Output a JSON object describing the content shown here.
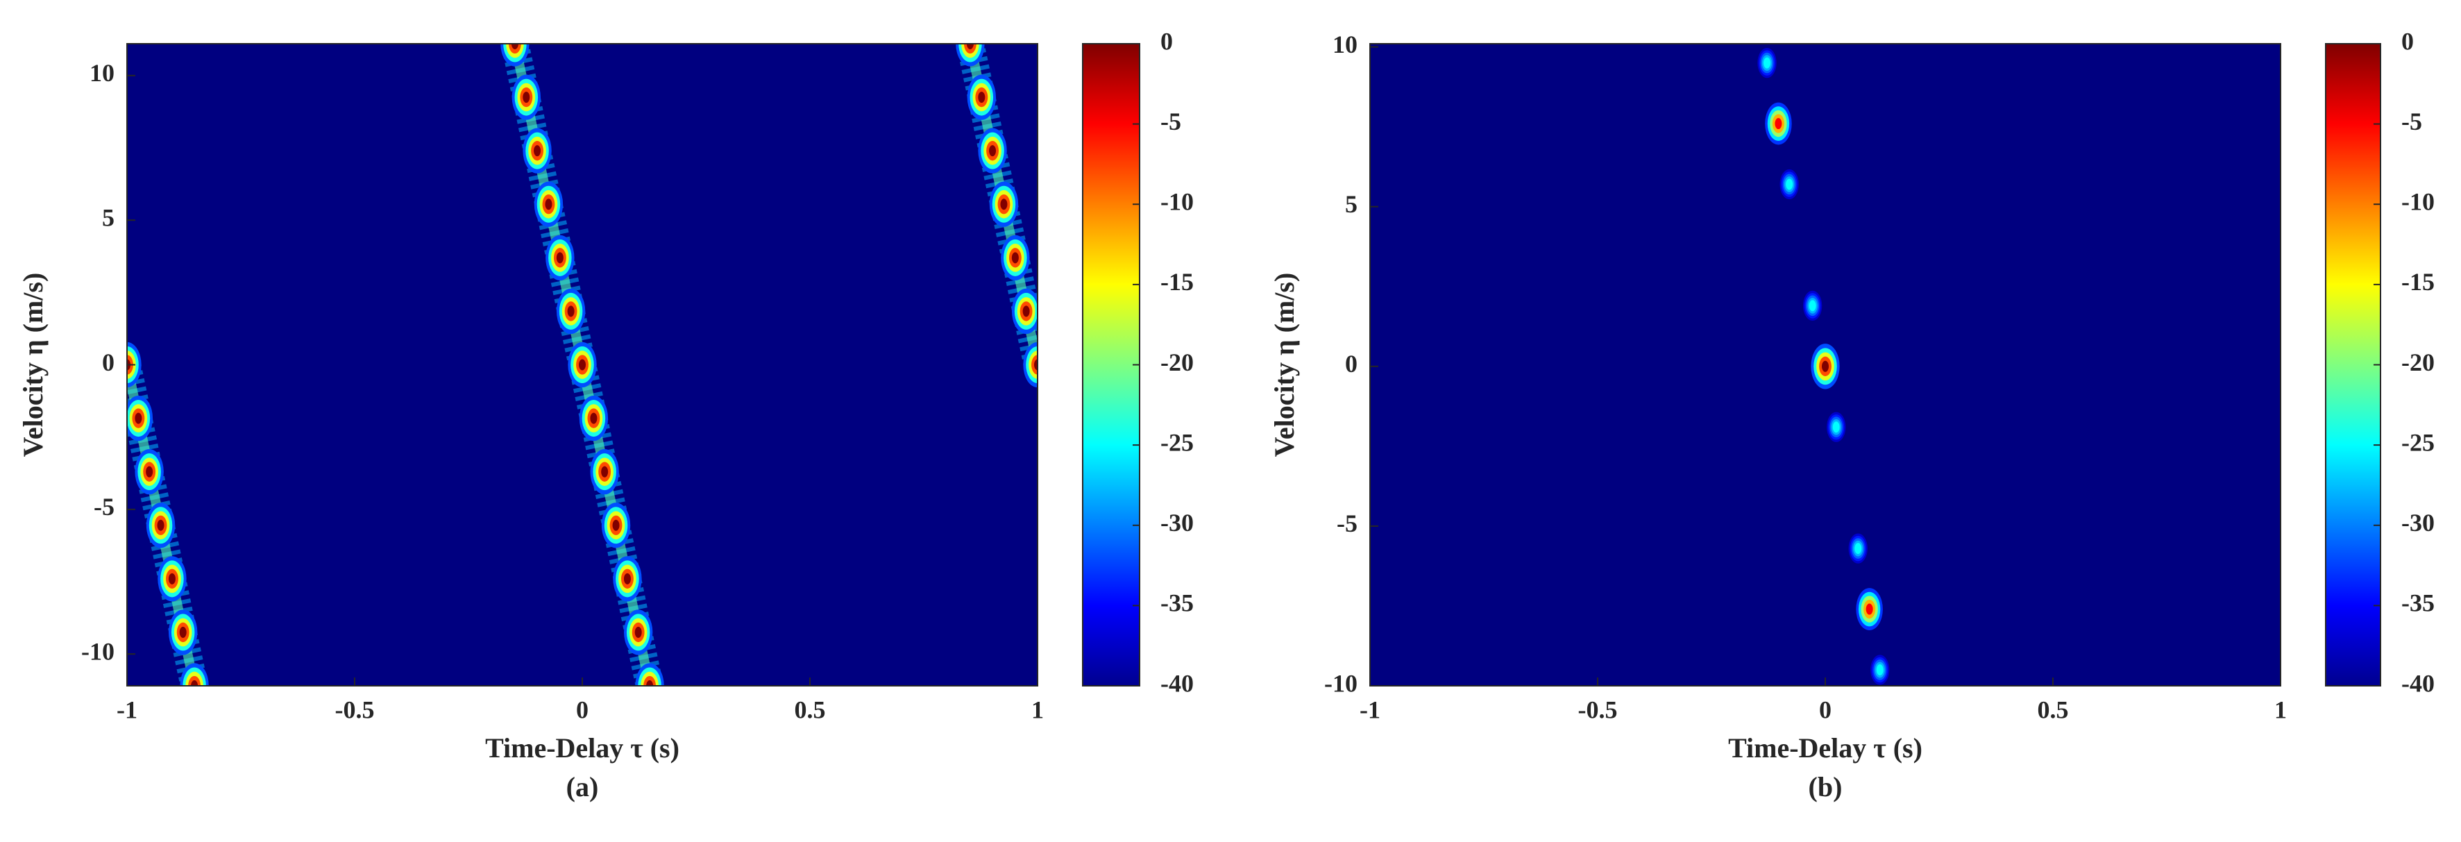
{
  "chart_data": [
    {
      "type": "heatmap",
      "xlabel": "Time-Delay τ (s)",
      "ylabel": "Velocity η (m/s)",
      "caption": "(a)",
      "xlim": [
        -1,
        1
      ],
      "ylim": [
        -11.1,
        11.1
      ],
      "xticks": [
        -1,
        -0.5,
        0,
        0.5,
        1
      ],
      "yticks": [
        -10,
        -5,
        0,
        5,
        10
      ],
      "clim": [
        -40,
        0
      ],
      "cticks": [
        0,
        -5,
        -10,
        -15,
        -20,
        -25,
        -30,
        -35,
        -40
      ],
      "colormap": "jet",
      "series": [
        {
          "x": [
            -0.148,
            -0.123,
            -0.099,
            -0.074,
            -0.049,
            -0.025,
            0,
            0.025,
            0.049,
            0.074,
            0.099,
            0.123,
            0.148
          ],
          "y": [
            11.1,
            9.25,
            7.4,
            5.55,
            3.7,
            1.85,
            0,
            -1.85,
            -3.7,
            -5.55,
            -7.4,
            -9.25,
            -11.1
          ],
          "values": [
            0,
            0,
            0,
            0,
            0,
            0,
            0,
            0,
            0,
            0,
            0,
            0,
            0
          ]
        },
        {
          "x": [
            -1,
            -0.975,
            -0.951,
            -0.926,
            -0.901,
            -0.877,
            -0.852
          ],
          "y": [
            0,
            -1.85,
            -3.7,
            -5.55,
            -7.4,
            -9.25,
            -11.1
          ],
          "values": [
            0,
            0,
            0,
            0,
            0,
            0,
            0
          ]
        },
        {
          "x": [
            1,
            0.975,
            0.951,
            0.926,
            0.901,
            0.877,
            0.852
          ],
          "y": [
            0,
            1.85,
            3.7,
            5.55,
            7.4,
            9.25,
            11.1
          ],
          "values": [
            0,
            0,
            0,
            0,
            0,
            0,
            0
          ]
        }
      ]
    },
    {
      "type": "heatmap",
      "xlabel": "Time-Delay τ (s)",
      "ylabel": "Velocity η (m/s)",
      "caption": "(b)",
      "xlim": [
        -1,
        1
      ],
      "ylim": [
        -10,
        10.1
      ],
      "xticks": [
        -1,
        -0.5,
        0,
        0.5,
        1
      ],
      "yticks": [
        -10,
        -5,
        0,
        5,
        10
      ],
      "clim": [
        -40,
        0
      ],
      "cticks": [
        0,
        -5,
        -10,
        -15,
        -20,
        -25,
        -30,
        -35,
        -40
      ],
      "colormap": "jet",
      "series": [
        {
          "x": [
            -0.128,
            -0.103,
            -0.079,
            -0.028,
            0,
            0.024,
            0.072,
            0.097,
            0.12
          ],
          "y": [
            9.5,
            7.6,
            5.7,
            1.9,
            0,
            -1.9,
            -5.7,
            -7.6,
            -9.5
          ],
          "values": [
            -25,
            -5,
            -25,
            -25,
            0,
            -25,
            -25,
            -5,
            -25
          ]
        }
      ]
    }
  ]
}
